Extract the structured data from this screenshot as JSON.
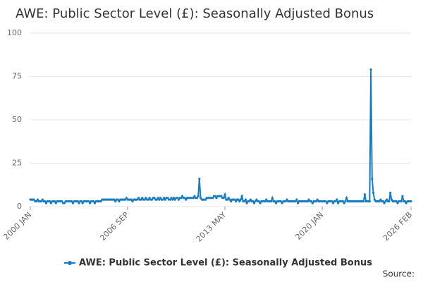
{
  "chart_data": {
    "type": "line",
    "title": "AWE: Public Sector Level (£): Seasonally Adjusted Bonus",
    "source": "Source:",
    "ylim": [
      0,
      100
    ],
    "yticks": [
      0,
      25,
      50,
      75,
      100
    ],
    "grid": true,
    "categories": [
      "2000 JAN",
      null,
      null,
      null,
      null,
      null,
      null,
      null,
      null,
      null,
      null,
      null,
      null,
      null,
      null,
      null,
      null,
      null,
      null,
      null,
      null,
      null,
      null,
      null,
      null,
      null,
      null,
      null,
      null,
      null,
      null,
      null,
      null,
      null,
      null,
      null,
      null,
      null,
      null,
      null,
      null,
      null,
      null,
      null,
      null,
      null,
      null,
      null,
      null,
      null,
      null,
      null,
      null,
      null,
      null,
      null,
      null,
      null,
      null,
      null,
      null,
      null,
      null,
      null,
      null,
      null,
      null,
      null,
      null,
      null,
      null,
      null,
      null,
      null,
      null,
      null,
      null,
      null,
      null,
      null,
      "2006 SEP",
      null,
      null,
      null,
      null,
      null,
      null,
      null,
      null,
      null,
      null,
      null,
      null,
      null,
      null,
      null,
      null,
      null,
      null,
      null,
      null,
      null,
      null,
      null,
      null,
      null,
      null,
      null,
      null,
      null,
      null,
      null,
      null,
      null,
      null,
      null,
      null,
      null,
      null,
      null,
      null,
      null,
      null,
      null,
      null,
      null,
      null,
      null,
      null,
      null,
      null,
      null,
      null,
      null,
      null,
      null,
      null,
      null,
      null,
      null,
      null,
      null,
      null,
      null,
      null,
      null,
      null,
      null,
      null,
      null,
      null,
      null,
      null,
      null,
      null,
      null,
      null,
      null,
      null,
      null,
      "2013 MAY",
      null,
      null,
      null,
      null,
      null,
      null,
      null,
      null,
      null,
      null,
      null,
      null,
      null,
      null,
      null,
      null,
      null,
      null,
      null,
      null,
      null,
      null,
      null,
      null,
      null,
      null,
      null,
      null,
      null,
      null,
      null,
      null,
      null,
      null,
      null,
      null,
      null,
      null,
      null,
      null,
      null,
      null,
      null,
      null,
      null,
      null,
      null,
      null,
      null,
      null,
      null,
      null,
      null,
      null,
      null,
      null,
      null,
      null,
      null,
      null,
      null,
      null,
      null,
      null,
      null,
      null,
      null,
      null,
      null,
      null,
      null,
      null,
      null,
      null,
      null,
      null,
      null,
      null,
      null,
      "2020 JAN",
      null,
      null,
      null,
      null,
      null,
      null,
      null,
      null,
      null,
      null,
      null,
      null,
      null,
      null,
      null,
      null,
      null,
      null,
      null,
      null,
      null,
      null,
      null,
      null,
      null,
      null,
      null,
      null,
      null,
      null,
      null,
      null,
      null,
      null,
      null,
      null,
      null,
      null,
      null,
      null,
      null,
      null,
      null,
      null,
      null,
      null,
      null,
      null,
      null,
      null,
      null,
      null,
      null,
      null,
      null,
      null,
      null,
      null,
      null,
      null,
      null,
      null,
      null,
      null,
      null,
      null,
      null,
      null,
      null,
      null,
      null,
      null,
      "2026 FEB"
    ],
    "series": [
      {
        "name": "AWE: Public Sector Level (£): Seasonally Adjusted Bonus",
        "color": "#1a7dbf",
        "values": [
          4,
          4,
          4,
          4,
          3,
          3,
          4,
          3,
          3,
          3,
          4,
          3,
          3,
          2,
          3,
          3,
          3,
          2,
          3,
          3,
          3,
          2,
          3,
          3,
          3,
          3,
          3,
          2,
          2,
          3,
          3,
          3,
          3,
          3,
          3,
          2,
          3,
          3,
          3,
          3,
          2,
          3,
          3,
          2,
          3,
          3,
          3,
          3,
          3,
          2,
          3,
          3,
          3,
          2,
          3,
          3,
          3,
          3,
          3,
          4,
          4,
          4,
          4,
          4,
          4,
          4,
          4,
          4,
          4,
          4,
          3,
          4,
          4,
          3,
          4,
          4,
          4,
          4,
          4,
          5,
          4,
          4,
          4,
          4,
          3,
          4,
          4,
          4,
          4,
          5,
          4,
          4,
          5,
          4,
          4,
          5,
          4,
          4,
          5,
          4,
          4,
          5,
          5,
          4,
          4,
          5,
          4,
          5,
          4,
          4,
          5,
          4,
          5,
          5,
          4,
          4,
          5,
          4,
          5,
          4,
          5,
          5,
          4,
          5,
          5,
          6,
          5,
          5,
          4,
          5,
          5,
          5,
          5,
          5,
          5,
          6,
          5,
          5,
          6,
          16,
          5,
          4,
          4,
          4,
          4,
          5,
          5,
          5,
          5,
          5,
          5,
          6,
          6,
          5,
          6,
          6,
          6,
          6,
          5,
          5,
          7,
          4,
          4,
          5,
          4,
          3,
          4,
          4,
          4,
          3,
          4,
          4,
          3,
          4,
          6,
          3,
          3,
          4,
          2,
          3,
          3,
          4,
          3,
          3,
          2,
          3,
          4,
          3,
          3,
          2,
          3,
          3,
          3,
          3,
          4,
          3,
          3,
          3,
          3,
          5,
          3,
          3,
          2,
          3,
          3,
          3,
          3,
          2,
          3,
          3,
          3,
          4,
          3,
          3,
          3,
          3,
          3,
          3,
          3,
          4,
          2,
          3,
          3,
          3,
          3,
          3,
          3,
          3,
          3,
          4,
          3,
          3,
          2,
          3,
          3,
          3,
          4,
          3,
          3,
          3,
          3,
          3,
          3,
          3,
          2,
          3,
          3,
          3,
          3,
          2,
          3,
          3,
          4,
          2,
          3,
          3,
          3,
          3,
          2,
          3,
          5,
          3,
          3,
          3,
          3,
          3,
          3,
          3,
          3,
          3,
          3,
          3,
          3,
          3,
          3,
          7,
          3,
          3,
          3,
          3,
          79,
          16,
          8,
          4,
          3,
          3,
          3,
          3,
          4,
          3,
          3,
          2,
          3,
          4,
          3,
          3,
          8,
          4,
          3,
          3,
          3,
          3,
          2,
          3,
          3,
          3,
          6,
          3,
          3,
          2,
          3,
          3,
          3,
          3
        ]
      }
    ]
  }
}
